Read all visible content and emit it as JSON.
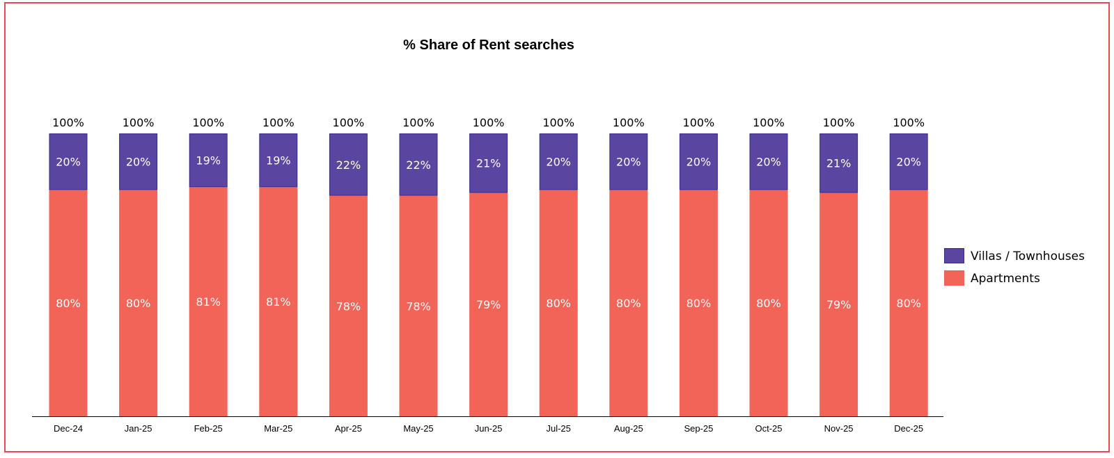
{
  "chart_data": {
    "type": "bar",
    "stacked": true,
    "title": "% Share of Rent searches",
    "xlabel": "",
    "ylabel": "",
    "ylim": [
      0,
      100
    ],
    "grid": false,
    "legend_position": "right",
    "categories": [
      "Dec-24",
      "Jan-25",
      "Feb-25",
      "Mar-25",
      "Apr-25",
      "May-25",
      "Jun-25",
      "Jul-25",
      "Aug-25",
      "Sep-25",
      "Oct-25",
      "Nov-25",
      "Dec-25"
    ],
    "series": [
      {
        "name": "Apartments",
        "color": "#f26457",
        "values": [
          80,
          80,
          81,
          81,
          78,
          78,
          79,
          80,
          80,
          80,
          80,
          79,
          80
        ],
        "labels": [
          "80%",
          "80%",
          "81%",
          "81%",
          "78%",
          "78%",
          "79%",
          "80%",
          "80%",
          "80%",
          "80%",
          "79%",
          "80%"
        ]
      },
      {
        "name": "Villas / Townhouses",
        "color": "#5a46a0",
        "values": [
          20,
          20,
          19,
          19,
          22,
          22,
          21,
          20,
          20,
          20,
          20,
          21,
          20
        ],
        "labels": [
          "20%",
          "20%",
          "19%",
          "19%",
          "22%",
          "22%",
          "21%",
          "20%",
          "20%",
          "20%",
          "20%",
          "21%",
          "20%"
        ]
      }
    ],
    "totals": [
      100,
      100,
      100,
      100,
      100,
      100,
      100,
      100,
      100,
      100,
      100,
      100,
      100
    ],
    "total_labels": [
      "100%",
      "100%",
      "100%",
      "100%",
      "100%",
      "100%",
      "100%",
      "100%",
      "100%",
      "100%",
      "100%",
      "100%",
      "100%"
    ],
    "legend_order": [
      "Villas / Townhouses",
      "Apartments"
    ]
  },
  "colors": {
    "frame_border": "#e84a4f",
    "axis": "#000000",
    "segment_outline": "#3a2a8c"
  }
}
